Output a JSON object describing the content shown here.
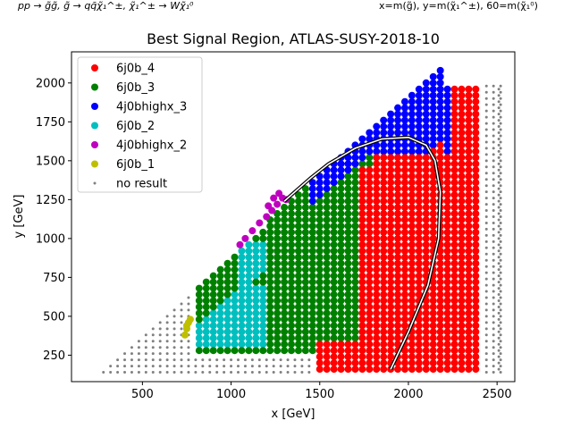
{
  "header": {
    "process": "pp → g̃g̃, g̃ → qq̄χ̃₁^±, χ̃₁^± → Wχ̃₁⁰",
    "mapping": "x=m(g̃), y=m(χ̃₁^±), 60=m(χ̃₁⁰)"
  },
  "chart_data": {
    "type": "scatter",
    "title": "Best Signal Region, ATLAS-SUSY-2018-10",
    "xlabel": "x [GeV]",
    "ylabel": "y [GeV]",
    "xlim": [
      100,
      2600
    ],
    "ylim": [
      80,
      2200
    ],
    "xticks": [
      500,
      1000,
      1500,
      2000,
      2500
    ],
    "yticks": [
      250,
      500,
      750,
      1000,
      1250,
      1500,
      1750,
      2000
    ],
    "grid": false,
    "legend_position": "top-left",
    "series": [
      {
        "name": "6j0b_4",
        "color": "#ff0000",
        "marker": "big"
      },
      {
        "name": "6j0b_3",
        "color": "#008000",
        "marker": "big"
      },
      {
        "name": "4j0bhighx_3",
        "color": "#0000ff",
        "marker": "big"
      },
      {
        "name": "6j0b_2",
        "color": "#00bfbf",
        "marker": "big"
      },
      {
        "name": "4j0bhighx_2",
        "color": "#bf00bf",
        "marker": "big"
      },
      {
        "name": "6j0b_1",
        "color": "#bfbf00",
        "marker": "big"
      },
      {
        "name": "no result",
        "color": "#808080",
        "marker": "small"
      }
    ],
    "points": {
      "6j0b_1": [
        [
          740,
          380
        ],
        [
          750,
          420
        ],
        [
          760,
          460
        ],
        [
          770,
          480
        ],
        [
          750,
          440
        ]
      ],
      "4j0bhighx_2": [
        [
          1050,
          960
        ],
        [
          1080,
          1000
        ],
        [
          1120,
          1050
        ],
        [
          1160,
          1100
        ],
        [
          1200,
          1140
        ],
        [
          1230,
          1180
        ],
        [
          1260,
          1220
        ],
        [
          1290,
          1260
        ],
        [
          1240,
          1260
        ],
        [
          1210,
          1210
        ],
        [
          1270,
          1290
        ],
        [
          1310,
          1250
        ]
      ],
      "contour": [
        [
          1900,
          160
        ],
        [
          2000,
          400
        ],
        [
          2110,
          700
        ],
        [
          2170,
          1000
        ],
        [
          2180,
          1300
        ],
        [
          2150,
          1500
        ],
        [
          2100,
          1600
        ],
        [
          2000,
          1650
        ],
        [
          1850,
          1640
        ],
        [
          1700,
          1580
        ],
        [
          1550,
          1480
        ],
        [
          1450,
          1390
        ],
        [
          1350,
          1290
        ],
        [
          1300,
          1240
        ]
      ]
    }
  }
}
